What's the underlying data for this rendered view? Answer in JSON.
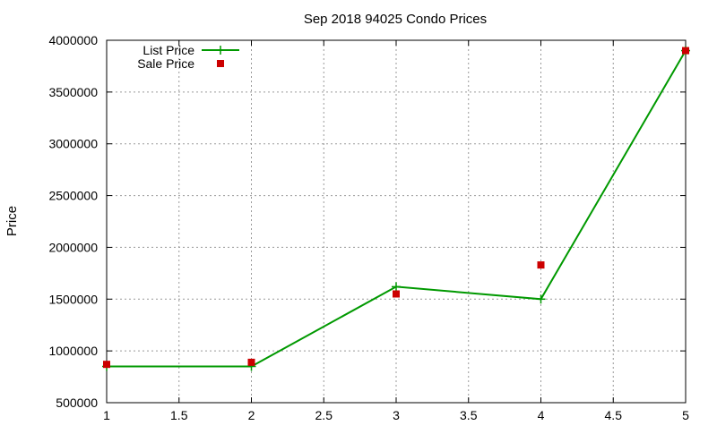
{
  "chart_data": {
    "type": "line",
    "title": "Sep 2018 94025 Condo Prices",
    "xlabel": "",
    "ylabel": "Price",
    "xlim": [
      1,
      5
    ],
    "ylim": [
      500000,
      4000000
    ],
    "xticks": [
      1,
      1.5,
      2,
      2.5,
      3,
      3.5,
      4,
      4.5,
      5
    ],
    "xtick_labels": [
      "1",
      "1.5",
      "2",
      "2.5",
      "3",
      "3.5",
      "4",
      "4.5",
      "5"
    ],
    "yticks": [
      500000,
      1000000,
      1500000,
      2000000,
      2500000,
      3000000,
      3500000,
      4000000
    ],
    "ytick_labels": [
      "500000",
      "1000000",
      "1500000",
      "2000000",
      "2500000",
      "3000000",
      "3500000",
      "4000000"
    ],
    "grid": true,
    "legend_position": "top-left",
    "series": [
      {
        "name": "List Price",
        "style": "line-with-plus-markers",
        "color": "#009900",
        "x": [
          1,
          2,
          3,
          4,
          5
        ],
        "y": [
          850000,
          850000,
          1620000,
          1500000,
          3900000
        ]
      },
      {
        "name": "Sale Price",
        "style": "square-markers",
        "color": "#cc0000",
        "x": [
          1,
          2,
          3,
          4,
          5
        ],
        "y": [
          870000,
          890000,
          1550000,
          1830000,
          3900000
        ]
      }
    ]
  }
}
